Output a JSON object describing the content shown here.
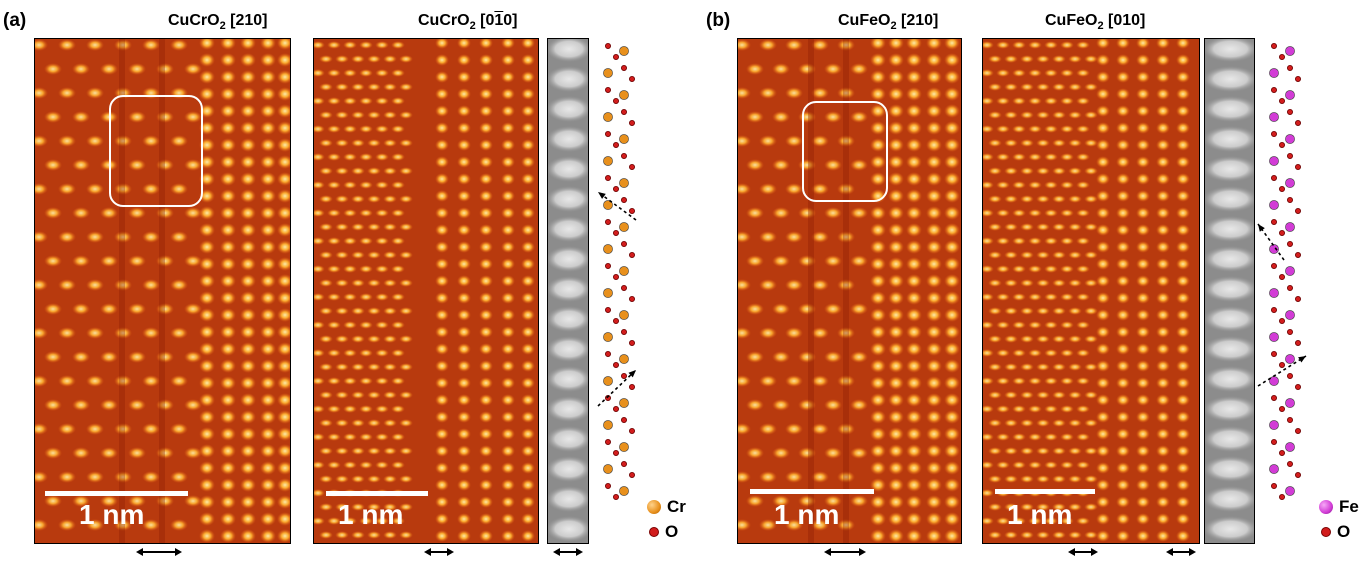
{
  "panels": {
    "a": {
      "label": "(a)",
      "img1_title_formula": "CuCrO",
      "img1_title_sub": "2",
      "img1_title_dir": "[210]",
      "img2_title_formula": "CuCrO",
      "img2_title_sub": "2",
      "img2_title_dir_pre": "[0",
      "img2_title_dir_bar1": "1",
      "img2_title_dir_bar2": "1",
      "img2_title_dir_bar": "1",
      "img2_title_dir_post": "0]",
      "scalebar1": "1 nm",
      "scalebar2": "1 nm",
      "legend_metal": "Cr",
      "legend_oxygen": "O",
      "metal_color": "#e8901c"
    },
    "b": {
      "label": "(b)",
      "img1_title_formula": "CuFeO",
      "img1_title_sub": "2",
      "img1_title_dir": "[210]",
      "img2_title_formula": "CuFeO",
      "img2_title_sub": "2",
      "img2_title_dir": "[010]",
      "scalebar1": "1 nm",
      "scalebar2": "1 nm",
      "legend_metal": "Fe",
      "legend_oxygen": "O",
      "metal_color": "#d23cd6"
    }
  },
  "colors": {
    "oxygen": "#d21c1c",
    "stem_bg": "#b2300c",
    "stem_bright": "#ffe08a",
    "haadf_bg": "#8a8a8a"
  }
}
